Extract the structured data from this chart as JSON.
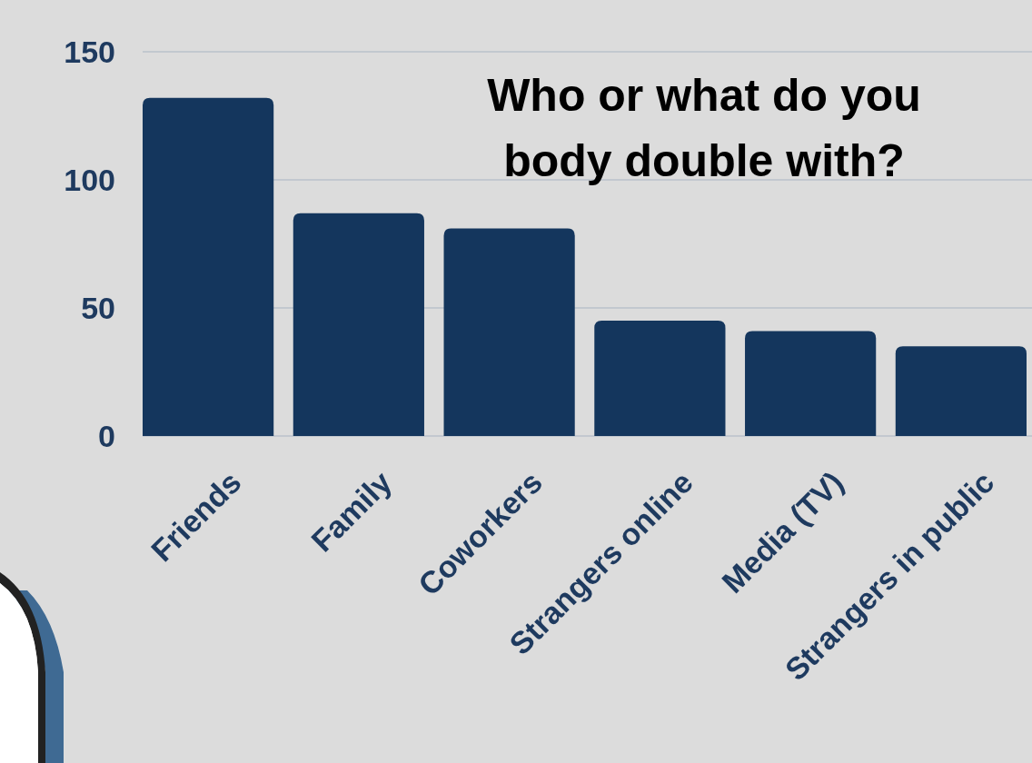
{
  "chart_data": {
    "type": "bar",
    "title": "Who or what do you body double with?",
    "categories": [
      "Friends",
      "Family",
      "Coworkers",
      "Strangers online",
      "Media (TV)",
      "Strangers in public"
    ],
    "values": [
      132,
      87,
      81,
      45,
      41,
      35
    ],
    "color": "#14365d",
    "ylim": [
      0,
      150
    ],
    "yticks": [
      0,
      50,
      100,
      150
    ],
    "grid": "y"
  }
}
